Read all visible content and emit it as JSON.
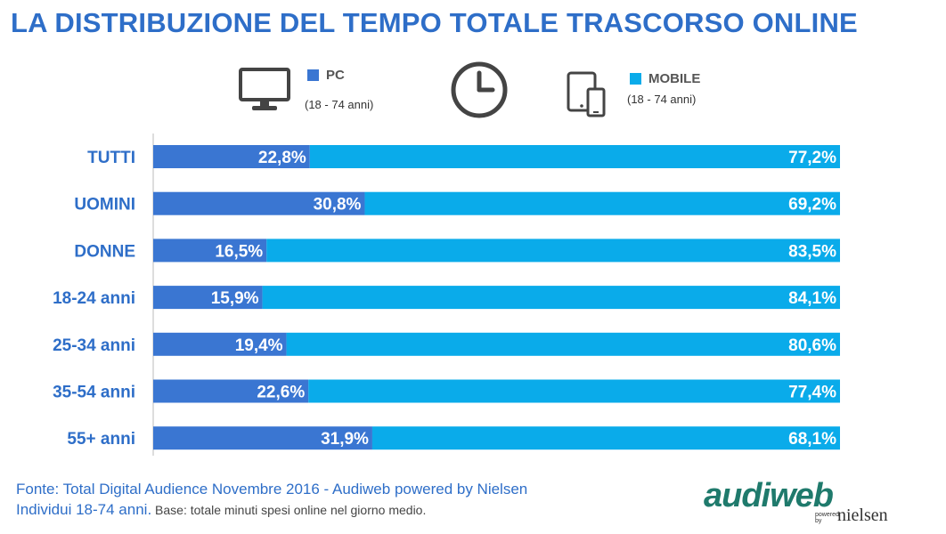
{
  "title": "LA DISTRIBUZIONE DEL TEMPO TOTALE TRASCORSO ONLINE",
  "legend": {
    "pc_label": "PC",
    "pc_note": "(18 - 74 anni)",
    "mobile_label": "MOBILE",
    "mobile_note": "(18 - 74 anni)"
  },
  "icons": [
    "monitor-icon",
    "clock-icon",
    "devices-icon"
  ],
  "colors": {
    "pc": "#3a76d2",
    "mobile": "#0aabea",
    "title": "#2e6ec8"
  },
  "chart_data": {
    "type": "bar",
    "orientation": "horizontal",
    "stacked": "100%",
    "categories": [
      "TUTTI",
      "UOMINI",
      "DONNE",
      "18-24 anni",
      "25-34 anni",
      "35-54 anni",
      "55+ anni"
    ],
    "series": [
      {
        "name": "PC",
        "values": [
          22.8,
          30.8,
          16.5,
          15.9,
          19.4,
          22.6,
          31.9
        ],
        "labels": [
          "22,8%",
          "30,8%",
          "16,5%",
          "15,9%",
          "19,4%",
          "22,6%",
          "31,9%"
        ]
      },
      {
        "name": "MOBILE",
        "values": [
          77.2,
          69.2,
          83.5,
          84.1,
          80.6,
          77.4,
          68.1
        ],
        "labels": [
          "77,2%",
          "69,2%",
          "83,5%",
          "84,1%",
          "80,6%",
          "77,4%",
          "68,1%"
        ]
      }
    ],
    "xlim": [
      0,
      100
    ],
    "grid": false
  },
  "footer": {
    "line1": "Fonte: Total Digital Audience Novembre 2016 - Audiweb powered by Nielsen",
    "line2a": "Individui 18-74 anni.",
    "line2b": " Base: totale minuti spesi online nel giorno medio."
  },
  "logo": {
    "main": "audiweb",
    "powered": "powered",
    "by": "by",
    "nielsen": "nielsen"
  }
}
